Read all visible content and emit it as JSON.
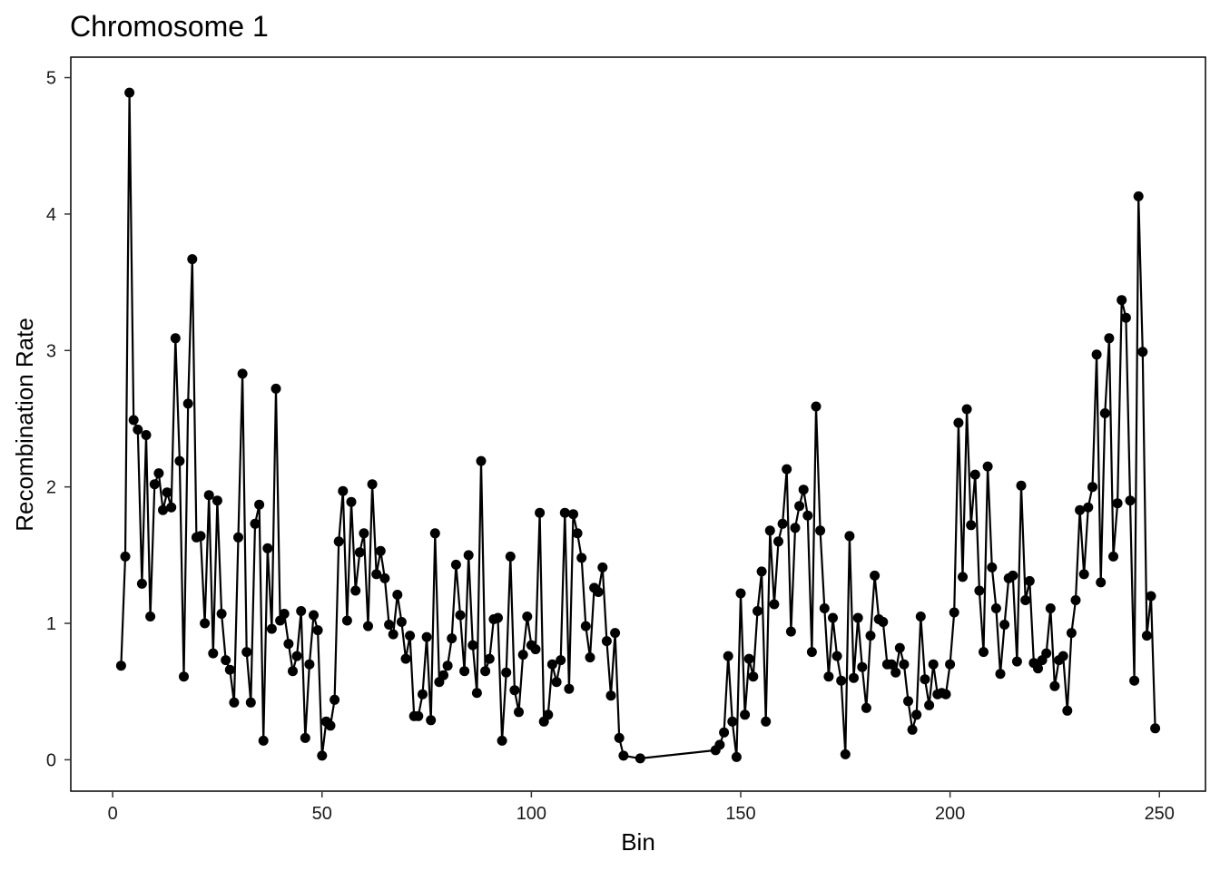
{
  "chart_data": {
    "type": "line",
    "title": "Chromosome 1",
    "xlabel": "Bin",
    "ylabel": "Recombination Rate",
    "xlim": [
      -10,
      261
    ],
    "ylim": [
      -0.23,
      5.15
    ],
    "x_ticks": [
      0,
      50,
      100,
      150,
      200,
      250
    ],
    "y_ticks": [
      0,
      1,
      2,
      3,
      4,
      5
    ],
    "grid": false,
    "markers": true,
    "color": "#000000",
    "x": [
      2,
      3,
      4,
      5,
      6,
      7,
      8,
      9,
      10,
      11,
      12,
      13,
      14,
      15,
      16,
      17,
      18,
      19,
      20,
      21,
      22,
      23,
      24,
      25,
      26,
      27,
      28,
      29,
      30,
      31,
      32,
      33,
      34,
      35,
      36,
      37,
      38,
      39,
      40,
      41,
      42,
      43,
      44,
      45,
      46,
      47,
      48,
      49,
      50,
      51,
      52,
      53,
      54,
      55,
      56,
      57,
      58,
      59,
      60,
      61,
      62,
      63,
      64,
      65,
      66,
      67,
      68,
      69,
      70,
      71,
      72,
      73,
      74,
      75,
      76,
      77,
      78,
      79,
      80,
      81,
      82,
      83,
      84,
      85,
      86,
      87,
      88,
      89,
      90,
      91,
      92,
      93,
      94,
      95,
      96,
      97,
      98,
      99,
      100,
      101,
      102,
      103,
      104,
      105,
      106,
      107,
      108,
      109,
      110,
      111,
      112,
      113,
      114,
      115,
      116,
      117,
      118,
      119,
      120,
      121,
      122,
      126,
      144,
      145,
      146,
      147,
      148,
      149,
      150,
      151,
      152,
      153,
      154,
      155,
      156,
      157,
      158,
      159,
      160,
      161,
      162,
      163,
      164,
      165,
      166,
      167,
      168,
      169,
      170,
      171,
      172,
      173,
      174,
      175,
      176,
      177,
      178,
      179,
      180,
      181,
      182,
      183,
      184,
      185,
      186,
      187,
      188,
      189,
      190,
      191,
      192,
      193,
      194,
      195,
      196,
      197,
      198,
      199,
      200,
      201,
      202,
      203,
      204,
      205,
      206,
      207,
      208,
      209,
      210,
      211,
      212,
      213,
      214,
      215,
      216,
      217,
      218,
      219,
      220,
      221,
      222,
      223,
      224,
      225,
      226,
      227,
      228,
      229,
      230,
      231,
      232,
      233,
      234,
      235,
      236,
      237,
      238,
      239,
      240,
      241,
      242,
      243,
      244,
      245,
      246,
      247,
      248,
      249
    ],
    "y": [
      0.69,
      1.49,
      4.89,
      2.49,
      2.42,
      1.29,
      2.38,
      1.05,
      2.02,
      2.1,
      1.83,
      1.96,
      1.85,
      3.09,
      2.19,
      0.61,
      2.61,
      3.67,
      1.63,
      1.64,
      1.0,
      1.94,
      0.78,
      1.9,
      1.07,
      0.73,
      0.66,
      0.42,
      1.63,
      2.83,
      0.79,
      0.42,
      1.73,
      1.87,
      0.14,
      1.55,
      0.96,
      2.72,
      1.02,
      1.07,
      0.85,
      0.65,
      0.76,
      1.09,
      0.16,
      0.7,
      1.06,
      0.95,
      0.03,
      0.28,
      0.25,
      0.44,
      1.6,
      1.97,
      1.02,
      1.89,
      1.24,
      1.52,
      1.66,
      0.98,
      2.02,
      1.36,
      1.53,
      1.33,
      0.99,
      0.92,
      1.21,
      1.01,
      0.74,
      0.91,
      0.32,
      0.32,
      0.48,
      0.9,
      0.29,
      1.66,
      0.57,
      0.62,
      0.69,
      0.89,
      1.43,
      1.06,
      0.65,
      1.5,
      0.84,
      0.49,
      2.19,
      0.65,
      0.74,
      1.03,
      1.04,
      0.14,
      0.64,
      1.49,
      0.51,
      0.35,
      0.77,
      1.05,
      0.84,
      0.81,
      1.81,
      0.28,
      0.33,
      0.7,
      0.57,
      0.73,
      1.81,
      0.52,
      1.8,
      1.66,
      1.48,
      0.98,
      0.75,
      1.26,
      1.23,
      1.41,
      0.87,
      0.47,
      0.93,
      0.16,
      0.03,
      0.01,
      0.07,
      0.11,
      0.2,
      0.76,
      0.28,
      0.02,
      1.22,
      0.33,
      0.74,
      0.61,
      1.09,
      1.38,
      0.28,
      1.68,
      1.14,
      1.6,
      1.73,
      2.13,
      0.94,
      1.7,
      1.86,
      1.98,
      1.79,
      0.79,
      2.59,
      1.68,
      1.11,
      0.61,
      1.04,
      0.76,
      0.58,
      0.04,
      1.64,
      0.6,
      1.04,
      0.68,
      0.38,
      0.91,
      1.35,
      1.03,
      1.01,
      0.7,
      0.7,
      0.64,
      0.82,
      0.7,
      0.43,
      0.22,
      0.33,
      1.05,
      0.59,
      0.4,
      0.7,
      0.48,
      0.49,
      0.48,
      0.7,
      1.08,
      2.47,
      1.34,
      2.57,
      1.72,
      2.09,
      1.24,
      0.79,
      2.15,
      1.41,
      1.11,
      0.63,
      0.99,
      1.33,
      1.35,
      0.72,
      2.01,
      1.17,
      1.31,
      0.71,
      0.67,
      0.73,
      0.78,
      1.11,
      0.54,
      0.73,
      0.76,
      0.36,
      0.93,
      1.17,
      1.83,
      1.36,
      1.85,
      2.0,
      2.97,
      1.3,
      2.54,
      3.09,
      1.49,
      1.88,
      3.37,
      3.24,
      1.9,
      0.58,
      4.13,
      2.99,
      0.91,
      1.2,
      0.23
    ]
  }
}
